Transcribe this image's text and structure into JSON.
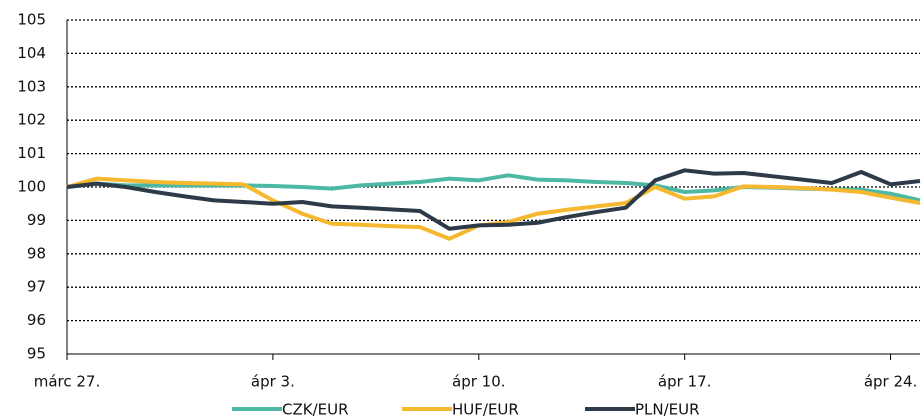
{
  "chart_data": {
    "type": "line",
    "categories": [
      "márc 27.",
      null,
      null,
      null,
      null,
      null,
      null,
      "ápr 3.",
      null,
      null,
      null,
      null,
      null,
      null,
      "ápr 10.",
      null,
      null,
      null,
      null,
      null,
      null,
      "ápr 17.",
      null,
      null,
      null,
      null,
      null,
      null,
      "ápr 24.",
      null
    ],
    "series": [
      {
        "name": "CZK/EUR",
        "color": "#4db8a4",
        "values": [
          100,
          100.1,
          100.05,
          100.05,
          100.05,
          100.05,
          100.05,
          100.03,
          100.0,
          99.95,
          100.05,
          100.1,
          100.15,
          100.25,
          100.2,
          100.35,
          100.22,
          100.2,
          100.15,
          100.12,
          100.05,
          99.85,
          99.9,
          100.0,
          99.98,
          99.95,
          99.93,
          99.92,
          99.8,
          99.6
        ]
      },
      {
        "name": "HUF/EUR",
        "color": "#f5b82e",
        "values": [
          100,
          100.25,
          100.2,
          100.15,
          100.12,
          100.1,
          100.08,
          99.6,
          99.2,
          98.9,
          98.87,
          98.83,
          98.8,
          98.45,
          98.85,
          98.95,
          99.2,
          99.32,
          99.42,
          99.52,
          100.0,
          99.65,
          99.72,
          100.02,
          100.0,
          99.97,
          99.92,
          99.85,
          99.68,
          99.52
        ]
      },
      {
        "name": "PLN/EUR",
        "color": "#2d3a48",
        "values": [
          100,
          100.1,
          100.0,
          99.85,
          99.72,
          99.6,
          99.55,
          99.5,
          99.55,
          99.42,
          99.38,
          99.33,
          99.28,
          98.75,
          98.85,
          98.87,
          98.93,
          99.1,
          99.25,
          99.38,
          100.2,
          100.5,
          100.4,
          100.42,
          100.32,
          100.22,
          100.12,
          100.45,
          100.08,
          100.18
        ]
      }
    ],
    "ylim": [
      95,
      105
    ],
    "yticks": [
      95,
      96,
      97,
      98,
      99,
      100,
      101,
      102,
      103,
      104,
      105
    ],
    "grid": true
  }
}
